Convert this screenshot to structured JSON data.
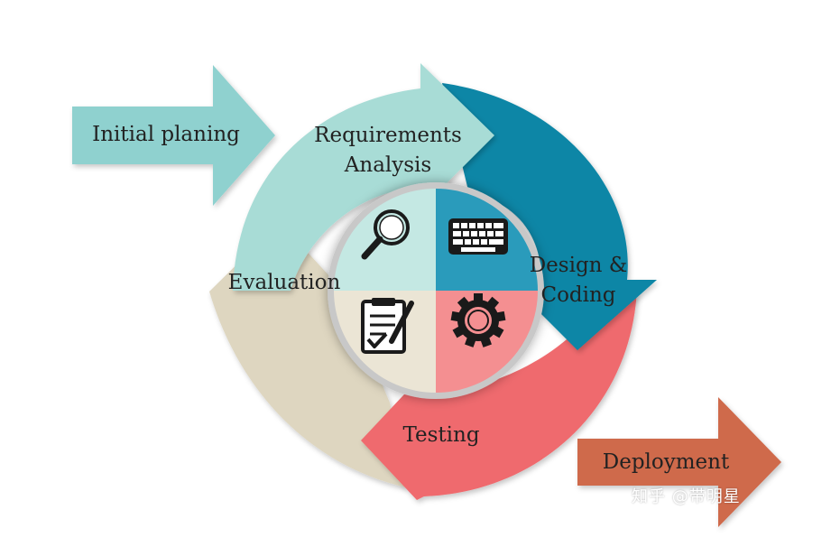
{
  "labels": {
    "initial": "Initial planing",
    "requirements_line1": "Requirements",
    "requirements_line2": "Analysis",
    "design_line1": "Design &",
    "design_line2": "Coding",
    "testing": "Testing",
    "evaluation": "Evaluation",
    "deployment": "Deployment"
  },
  "watermark": "知乎 @带明星",
  "icons": {
    "requirements": "magnifier-icon",
    "design": "keyboard-icon",
    "testing": "gear-icon",
    "evaluation": "clipboard-checklist-icon"
  },
  "colors": {
    "requirements": "#a8dcd6",
    "design": "#0a86a6",
    "testing": "#ef6b6e",
    "evaluation": "#ded6c0",
    "initial_arrow": "#8fd1cf",
    "deployment_arrow": "#cf6a4c",
    "center_requirements": "#c4e8e3",
    "center_design": "#2a9bbb",
    "center_testing": "#f48f91",
    "center_evaluation": "#ebe5d5",
    "center_ring": "#c8c8c8",
    "text": "#222222"
  }
}
